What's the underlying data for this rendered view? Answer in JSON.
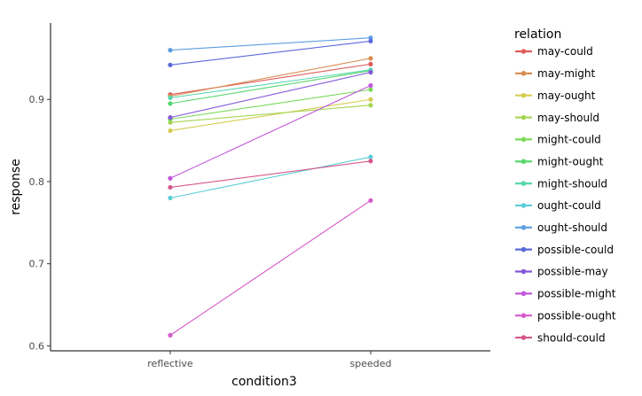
{
  "chart_data": {
    "type": "line",
    "xlabel": "condition3",
    "ylabel": "response",
    "categories": [
      "reflective",
      "speeded"
    ],
    "y_ticks": [
      0.6,
      0.7,
      0.8,
      0.9
    ],
    "y_tick_labels": [
      "0.6",
      "0.7",
      "0.8",
      "0.9"
    ],
    "ylim": [
      0.594,
      0.993
    ],
    "grid": false,
    "legend": {
      "title": "relation",
      "position": "right"
    },
    "series": [
      {
        "name": "may-could",
        "color": "#DE5C5A",
        "values": [
          0.906,
          0.943
        ]
      },
      {
        "name": "may-might",
        "color": "#D98C52",
        "values": [
          0.904,
          0.95
        ]
      },
      {
        "name": "may-ought",
        "color": "#D4CD52",
        "values": [
          0.862,
          0.9
        ]
      },
      {
        "name": "may-should",
        "color": "#A6D452",
        "values": [
          0.872,
          0.893
        ]
      },
      {
        "name": "might-could",
        "color": "#7BDA5A",
        "values": [
          0.876,
          0.912
        ]
      },
      {
        "name": "might-ought",
        "color": "#57D66C",
        "values": [
          0.895,
          0.935
        ]
      },
      {
        "name": "might-should",
        "color": "#57D6AE",
        "values": [
          0.902,
          0.936
        ]
      },
      {
        "name": "ought-could",
        "color": "#5BCDD6",
        "values": [
          0.78,
          0.83
        ]
      },
      {
        "name": "ought-should",
        "color": "#5B9EE0",
        "values": [
          0.96,
          0.975
        ]
      },
      {
        "name": "possible-could",
        "color": "#5B6ADB",
        "values": [
          0.942,
          0.971
        ]
      },
      {
        "name": "possible-may",
        "color": "#8358D8",
        "values": [
          0.878,
          0.933
        ]
      },
      {
        "name": "possible-might",
        "color": "#C258DB",
        "values": [
          0.804,
          0.917
        ]
      },
      {
        "name": "possible-ought",
        "color": "#D65ACB",
        "values": [
          0.613,
          0.777
        ]
      },
      {
        "name": "should-could",
        "color": "#D6578D",
        "values": [
          0.793,
          0.825
        ]
      }
    ]
  }
}
